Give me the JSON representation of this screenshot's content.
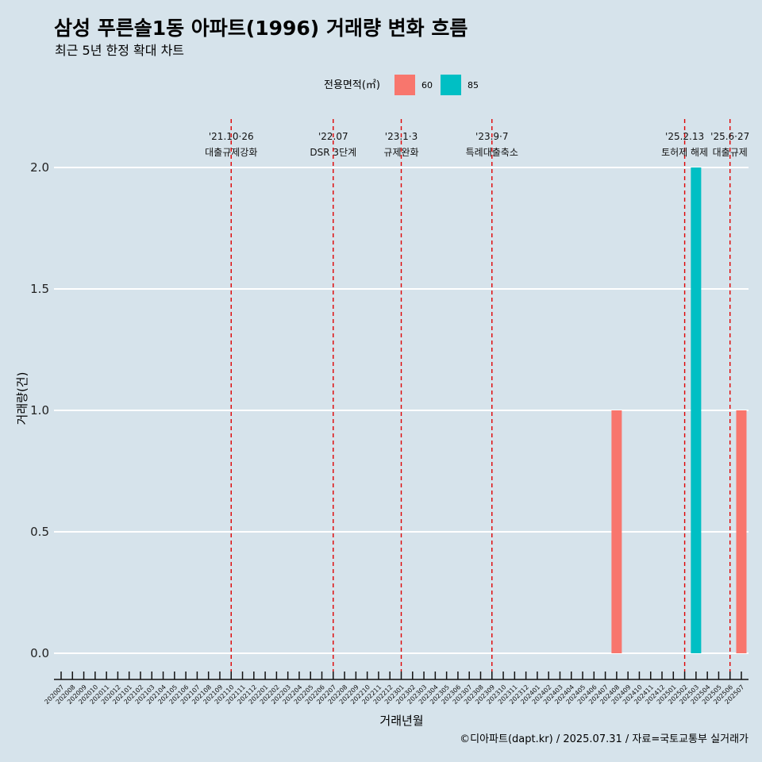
{
  "chart_data": {
    "type": "bar",
    "title": "삼성 푸른솔1동 아파트(1996) 거래량 변화 흐름",
    "subtitle": "최근 5년 한정 확대 차트",
    "xlabel": "거래년월",
    "ylabel": "거래량(건)",
    "ylim": [
      -0.1,
      2.2
    ],
    "yticks": [
      "0.0",
      "0.5",
      "1.0",
      "1.5",
      "2.0"
    ],
    "grid": "horizontal",
    "legend": {
      "title": "전용면적(㎡)",
      "position": "top",
      "entries": [
        {
          "name": "60",
          "color": "#f8766d"
        },
        {
          "name": "85",
          "color": "#00bfc4"
        }
      ]
    },
    "categories": [
      "202007",
      "202008",
      "202009",
      "202010",
      "202011",
      "202012",
      "202101",
      "202102",
      "202103",
      "202104",
      "202105",
      "202106",
      "202107",
      "202108",
      "202109",
      "202110",
      "202111",
      "202112",
      "202201",
      "202202",
      "202203",
      "202204",
      "202205",
      "202206",
      "202207",
      "202208",
      "202209",
      "202210",
      "202211",
      "202212",
      "202301",
      "202302",
      "202303",
      "202304",
      "202305",
      "202306",
      "202307",
      "202308",
      "202309",
      "202310",
      "202311",
      "202312",
      "202401",
      "202402",
      "202403",
      "202404",
      "202405",
      "202406",
      "202407",
      "202408",
      "202409",
      "202410",
      "202411",
      "202412",
      "202501",
      "202502",
      "202503",
      "202504",
      "202505",
      "202506",
      "202507"
    ],
    "series": [
      {
        "name": "60",
        "color": "#f8766d",
        "points": [
          {
            "x": "202408",
            "y": 1
          },
          {
            "x": "202507",
            "y": 1
          }
        ]
      },
      {
        "name": "85",
        "color": "#00bfc4",
        "points": [
          {
            "x": "202503",
            "y": 2
          }
        ]
      }
    ],
    "events": [
      {
        "at": "202110",
        "date": "'21.10·26",
        "label": "대출규제강화"
      },
      {
        "at": "202207",
        "date": "'22.07",
        "label": "DSR 3단계"
      },
      {
        "at": "202301",
        "date": "'23.1·3",
        "label": "규제완화"
      },
      {
        "at": "202309",
        "date": "'23.9·7",
        "label": "특례대출축소"
      },
      {
        "at": "202502",
        "date": "'25.2.13",
        "label": "토허제 해제"
      },
      {
        "at": "202506",
        "date": "'25.6·27",
        "label": "대출규제"
      }
    ],
    "caption": "©디아파트(dapt.kr) / 2025.07.31 / 자료=국토교통부 실거래가"
  }
}
